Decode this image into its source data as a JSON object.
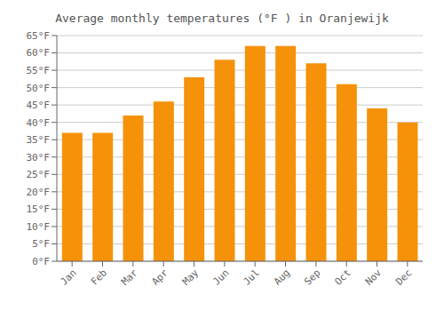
{
  "chart_data": {
    "type": "bar",
    "title": "Average monthly temperatures (°F ) in Oranjewijk",
    "categories": [
      "Jan",
      "Feb",
      "Mar",
      "Apr",
      "May",
      "Jun",
      "Jul",
      "Aug",
      "Sep",
      "Oct",
      "Nov",
      "Dec"
    ],
    "values": [
      37,
      37,
      42,
      46,
      53,
      58,
      62,
      62,
      57,
      51,
      44,
      40
    ],
    "color": "#F5920A",
    "ylim": [
      0,
      65
    ],
    "yticks": [
      {
        "value": 0,
        "label": "0°F"
      },
      {
        "value": 5,
        "label": "5°F"
      },
      {
        "value": 10,
        "label": "10°F"
      },
      {
        "value": 15,
        "label": "15°F"
      },
      {
        "value": 20,
        "label": "20°F"
      },
      {
        "value": 25,
        "label": "25°F"
      },
      {
        "value": 30,
        "label": "30°F"
      },
      {
        "value": 35,
        "label": "35°F"
      },
      {
        "value": 40,
        "label": "40°F"
      },
      {
        "value": 45,
        "label": "45°F"
      },
      {
        "value": 50,
        "label": "50°F"
      },
      {
        "value": 55,
        "label": "55°F"
      },
      {
        "value": 60,
        "label": "60°F"
      },
      {
        "value": 65,
        "label": "65°F"
      }
    ],
    "grid": true
  }
}
